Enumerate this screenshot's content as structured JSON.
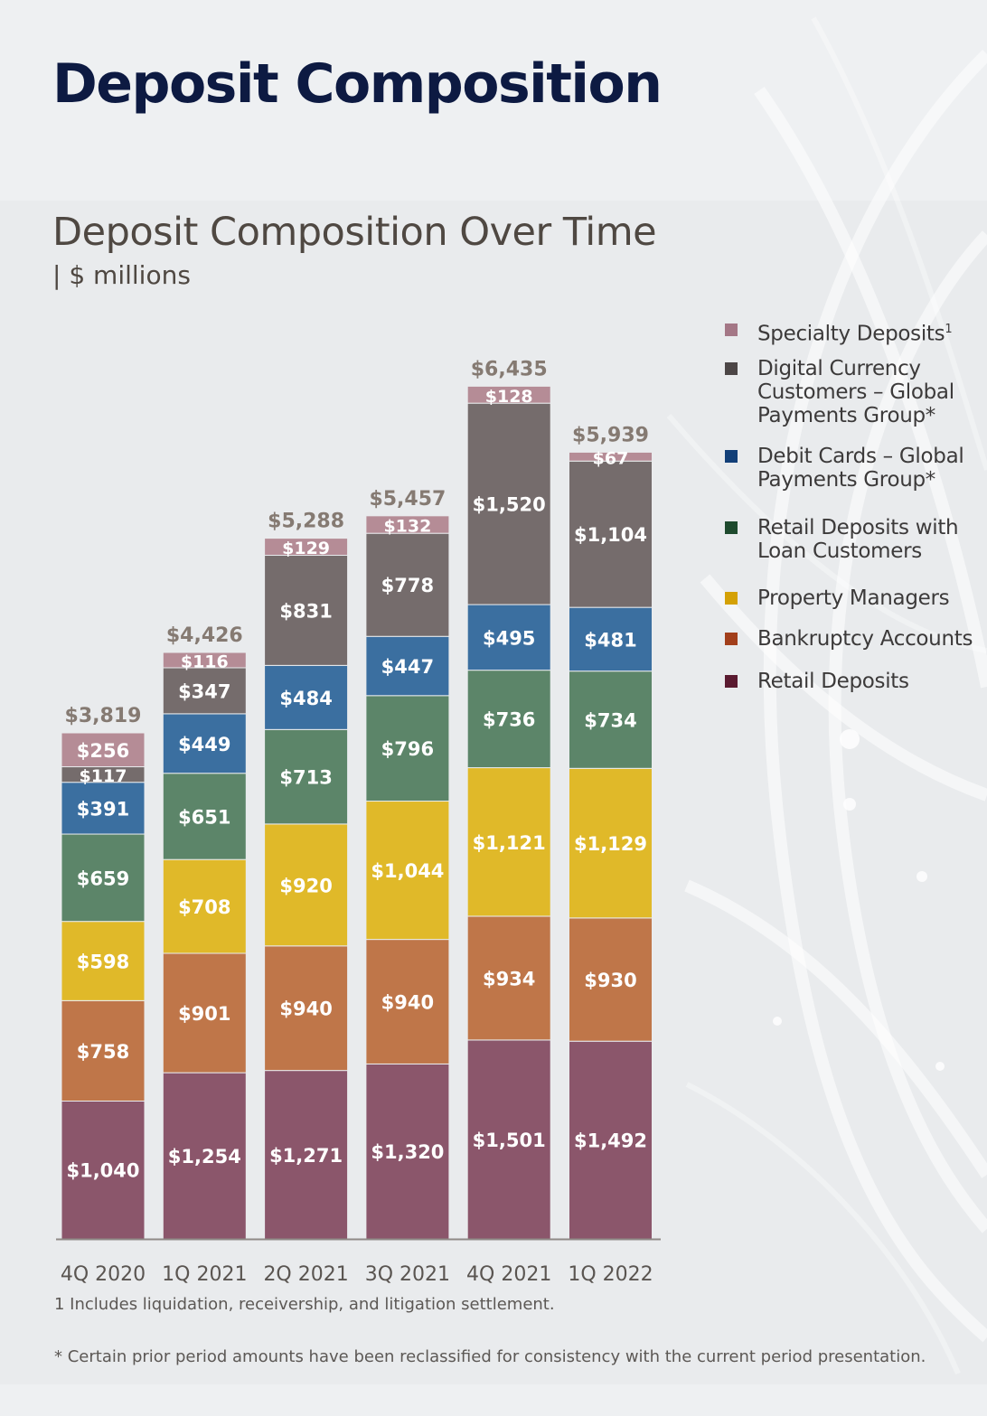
{
  "page_title": "Deposit Composition",
  "chart_data": {
    "type": "stacked-bar",
    "title": "Deposit Composition Over Time",
    "subtitle": "| $ millions",
    "categories": [
      "4Q 2020",
      "1Q 2021",
      "2Q 2021",
      "3Q 2021",
      "4Q 2021",
      "1Q 2022"
    ],
    "totals": [
      3819,
      4426,
      5288,
      5457,
      6435,
      5939
    ],
    "total_labels": [
      "$3,819",
      "$4,426",
      "$5,288",
      "$5,457",
      "$6,435",
      "$5,939"
    ],
    "series": [
      {
        "name": "Retail Deposits",
        "color": "#8b566b",
        "legend_color": "#5a1a30",
        "values": [
          1040,
          1254,
          1271,
          1320,
          1501,
          1492
        ],
        "labels": [
          "$1,040",
          "$1,254",
          "$1,271",
          "$1,320",
          "$1,501",
          "$1,492"
        ]
      },
      {
        "name": "Bankruptcy Accounts",
        "color": "#bf7649",
        "legend_color": "#a23f1b",
        "values": [
          758,
          901,
          940,
          940,
          934,
          930
        ],
        "labels": [
          "$758",
          "$901",
          "$940",
          "$940",
          "$934",
          "$930"
        ]
      },
      {
        "name": "Property Managers",
        "color": "#e0b929",
        "legend_color": "#d4a106",
        "values": [
          598,
          708,
          920,
          1044,
          1121,
          1129
        ],
        "labels": [
          "$598",
          "$708",
          "$920",
          "$1,044",
          "$1,121",
          "$1,129"
        ]
      },
      {
        "name": "Retail Deposits with Loan Customers",
        "color": "#5c8569",
        "legend_color": "#1e4a2e",
        "values": [
          659,
          651,
          713,
          796,
          736,
          734
        ],
        "labels": [
          "$659",
          "$651",
          "$713",
          "$796",
          "$736",
          "$734"
        ]
      },
      {
        "name": "Debit Cards – Global Payments Group*",
        "color": "#3b6fa0",
        "legend_color": "#123f78",
        "values": [
          391,
          449,
          484,
          447,
          495,
          481
        ],
        "labels": [
          "$391",
          "$449",
          "$484",
          "$447",
          "$495",
          "$481"
        ]
      },
      {
        "name": "Digital Currency Customers – Global Payments Group*",
        "color": "#756c6c",
        "legend_color": "#4c4646",
        "values": [
          117,
          347,
          831,
          778,
          1520,
          1104
        ],
        "labels": [
          "$117",
          "$347",
          "$831",
          "$778",
          "$1,520",
          "$1,104"
        ]
      },
      {
        "name": "Specialty Deposits",
        "color": "#b58c96",
        "legend_color": "#a47786",
        "values": [
          256,
          116,
          129,
          132,
          128,
          67
        ],
        "labels": [
          "$256",
          "$116",
          "$129",
          "$132",
          "$128",
          "$67"
        ]
      }
    ],
    "legend": [
      {
        "lines": [
          "Specialty Deposits"
        ],
        "sup": "1",
        "color": "#a47786"
      },
      {
        "lines": [
          "Digital Currency",
          "Customers – Global",
          "Payments Group*"
        ],
        "color": "#4c4646"
      },
      {
        "lines": [
          "Debit Cards – Global",
          "Payments Group*"
        ],
        "color": "#123f78"
      },
      {
        "lines": [
          "Retail Deposits with",
          "Loan Customers"
        ],
        "color": "#1e4a2e"
      },
      {
        "lines": [
          "Property Managers"
        ],
        "color": "#d4a106"
      },
      {
        "lines": [
          "Bankruptcy Accounts"
        ],
        "color": "#a23f1b"
      },
      {
        "lines": [
          "Retail Deposits"
        ],
        "color": "#5a1a30"
      }
    ],
    "legend_position": "right",
    "grid": false
  },
  "footnotes": {
    "note1": "1 Includes liquidation, receivership, and litigation settlement.",
    "note2": "* Certain prior period amounts have been reclassified for consistency with the current period presentation."
  }
}
